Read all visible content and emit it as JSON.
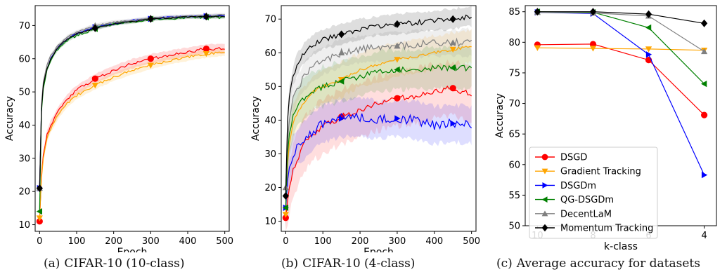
{
  "captions": [
    {
      "letter": "(a)",
      "text": "CIFAR-10 (10-class)"
    },
    {
      "letter": "(b)",
      "text": "CIFAR-10 (4-class)"
    },
    {
      "letter": "(c)",
      "text": "Average accuracy for datasets"
    }
  ],
  "colors": {
    "DSGD": "#ff0000",
    "Gradient Tracking": "#ffa500",
    "DSGDm": "#0000ff",
    "QG-DSGDm": "#008000",
    "DecentLaM": "#808080",
    "Momentum Tracking": "#000000"
  },
  "chart_data": [
    {
      "type": "line",
      "caption": "(a) CIFAR-10 (10-class)",
      "xlabel": "Epoch",
      "ylabel": "Accuracy",
      "xlim": [
        -12,
        512
      ],
      "ylim": [
        8,
        76
      ],
      "xticks": [
        0,
        100,
        200,
        300,
        400,
        500
      ],
      "yticks": [
        10,
        20,
        30,
        40,
        50,
        60,
        70
      ],
      "series": [
        {
          "name": "DSGD",
          "x": [
            0,
            5,
            10,
            20,
            30,
            50,
            75,
            100,
            150,
            200,
            250,
            300,
            350,
            400,
            450,
            500
          ],
          "values": [
            11,
            25,
            31,
            37,
            40,
            44,
            48,
            50.5,
            54,
            56.5,
            58.5,
            60,
            61,
            62,
            63,
            63
          ]
        },
        {
          "name": "Gradient Tracking",
          "x": [
            0,
            5,
            10,
            20,
            30,
            50,
            75,
            100,
            150,
            200,
            250,
            300,
            350,
            400,
            450,
            500
          ],
          "values": [
            12,
            24,
            30,
            36,
            39,
            43,
            46.5,
            49,
            52,
            54.5,
            56.5,
            58,
            59.5,
            60.5,
            61.5,
            62
          ]
        },
        {
          "name": "DSGDm",
          "x": [
            0,
            5,
            10,
            20,
            30,
            50,
            75,
            100,
            150,
            200,
            250,
            300,
            350,
            400,
            450,
            500
          ],
          "values": [
            21,
            45,
            52,
            57,
            60,
            63.5,
            66,
            67.5,
            69.5,
            70.5,
            71.5,
            72,
            72.5,
            72.7,
            72.8,
            73
          ]
        },
        {
          "name": "QG-DSGDm",
          "x": [
            0,
            5,
            10,
            20,
            30,
            50,
            75,
            100,
            150,
            200,
            250,
            300,
            350,
            400,
            450,
            500
          ],
          "values": [
            14,
            44,
            51,
            56.5,
            59.5,
            63,
            65.5,
            67,
            69,
            70.5,
            71,
            72,
            72,
            72.5,
            72.5,
            72.5
          ]
        },
        {
          "name": "DecentLaM",
          "x": [
            0,
            5,
            10,
            20,
            30,
            50,
            75,
            100,
            150,
            200,
            250,
            300,
            350,
            400,
            450,
            500
          ],
          "values": [
            21,
            46,
            53,
            58,
            61,
            64,
            66.5,
            68,
            70,
            71,
            71.5,
            72.2,
            72.6,
            72.8,
            73,
            73.2
          ]
        },
        {
          "name": "Momentum Tracking",
          "x": [
            0,
            5,
            10,
            20,
            30,
            50,
            75,
            100,
            150,
            200,
            250,
            300,
            350,
            400,
            450,
            500
          ],
          "values": [
            21,
            45,
            52,
            57,
            60,
            63.5,
            66,
            67.5,
            69.2,
            70.5,
            71.2,
            72,
            72.3,
            72.6,
            72.7,
            72.8
          ]
        }
      ]
    },
    {
      "type": "line",
      "caption": "(b) CIFAR-10 (4-class)",
      "xlabel": "Epoch",
      "ylabel": "Accuracy",
      "xlim": [
        -12,
        512
      ],
      "ylim": [
        7,
        74
      ],
      "xticks": [
        0,
        100,
        200,
        300,
        400,
        500
      ],
      "yticks": [
        10,
        20,
        30,
        40,
        50,
        60,
        70
      ],
      "series": [
        {
          "name": "DSGD",
          "x": [
            0,
            5,
            10,
            20,
            30,
            50,
            75,
            100,
            150,
            200,
            250,
            300,
            350,
            400,
            450,
            500
          ],
          "values": [
            11,
            16,
            20,
            25,
            28,
            33,
            36,
            38,
            41,
            43,
            45,
            46.5,
            47,
            48.5,
            49.5,
            47.5
          ]
        },
        {
          "name": "Gradient Tracking",
          "x": [
            0,
            5,
            10,
            20,
            30,
            50,
            75,
            100,
            150,
            200,
            250,
            300,
            350,
            400,
            450,
            500
          ],
          "values": [
            12,
            27,
            33,
            39,
            42,
            45,
            48.5,
            50,
            52,
            55,
            56.5,
            58,
            59,
            60,
            61,
            62
          ]
        },
        {
          "name": "DSGDm",
          "x": [
            0,
            5,
            10,
            20,
            30,
            50,
            75,
            100,
            150,
            200,
            250,
            300,
            350,
            400,
            450,
            500
          ],
          "values": [
            14,
            22,
            26,
            30,
            32,
            34,
            37,
            39,
            40.5,
            41,
            40,
            40.5,
            40,
            38.5,
            39,
            38.5
          ]
        },
        {
          "name": "QG-DSGDm",
          "x": [
            0,
            5,
            10,
            20,
            30,
            50,
            75,
            100,
            150,
            200,
            250,
            300,
            350,
            400,
            450,
            500
          ],
          "values": [
            14,
            30,
            36,
            41,
            44,
            46.5,
            48.5,
            50,
            51.5,
            53,
            54.5,
            55,
            55,
            55.5,
            55.5,
            55.5
          ]
        },
        {
          "name": "DecentLaM",
          "x": [
            0,
            5,
            10,
            20,
            30,
            50,
            75,
            100,
            150,
            200,
            250,
            300,
            350,
            400,
            450,
            500
          ],
          "values": [
            20,
            34,
            40,
            46,
            49,
            53,
            56,
            57.5,
            60,
            61,
            61.5,
            62,
            62.5,
            63,
            63,
            63
          ]
        },
        {
          "name": "Momentum Tracking",
          "x": [
            0,
            5,
            10,
            20,
            30,
            50,
            75,
            100,
            150,
            200,
            250,
            300,
            350,
            400,
            450,
            500
          ],
          "values": [
            17.5,
            40,
            47,
            53,
            56.5,
            60,
            62.5,
            64,
            65.5,
            67,
            68,
            68.5,
            69,
            69.5,
            70,
            71
          ]
        }
      ]
    },
    {
      "type": "line",
      "caption": "(c) Average accuracy for datasets",
      "xlabel": "k-class",
      "ylabel": "Accuracy",
      "categories": [
        "10",
        "8",
        "6",
        "4"
      ],
      "ylim": [
        50,
        86
      ],
      "yticks": [
        50,
        55,
        60,
        65,
        70,
        75,
        80,
        85
      ],
      "legend": "bottom-left",
      "series": [
        {
          "name": "DSGD",
          "values": [
            79.6,
            79.7,
            77.1,
            68.1
          ]
        },
        {
          "name": "Gradient Tracking",
          "values": [
            79.1,
            79.0,
            78.9,
            78.7
          ]
        },
        {
          "name": "DSGDm",
          "values": [
            84.9,
            84.7,
            78.0,
            58.3
          ]
        },
        {
          "name": "QG-DSGDm",
          "values": [
            85.0,
            84.9,
            82.4,
            73.2
          ]
        },
        {
          "name": "DecentLaM",
          "values": [
            84.9,
            84.8,
            84.3,
            78.5
          ]
        },
        {
          "name": "Momentum Tracking",
          "values": [
            85.0,
            85.0,
            84.6,
            83.1
          ]
        }
      ]
    }
  ]
}
